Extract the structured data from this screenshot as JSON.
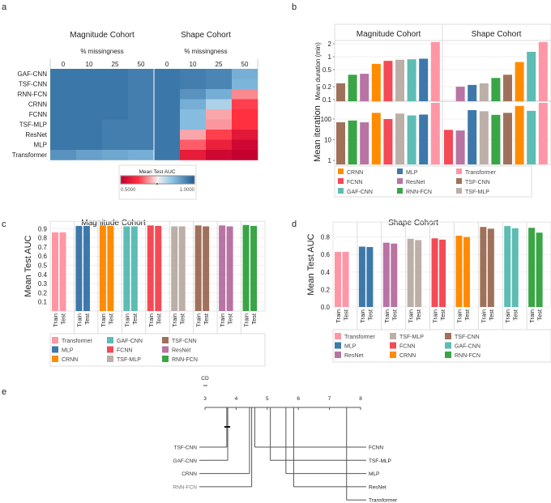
{
  "colors": {
    "Transformer": "#FF96A5",
    "MLP": "#3E78AA",
    "CRNN": "#FF8C00",
    "GAF-CNN": "#5DBCB4",
    "FCNN": "#F44A56",
    "TSF-MLP": "#BBAFA8",
    "TSF-CNN": "#A0715A",
    "ResNet": "#B874A3",
    "RNN-FCN": "#3AA546"
  },
  "chart_data": [
    {
      "panel": "a",
      "type": "heatmap",
      "cohorts": [
        "Magnitude Cohort",
        "Shape Cohort"
      ],
      "xlabel": "% missingness",
      "columns": [
        "0",
        "10",
        "25",
        "50"
      ],
      "rows": [
        "GAF-CNN",
        "TSF-CNN",
        "RNN-FCN",
        "CRNN",
        "FCNN",
        "TSF-MLP",
        "ResNet",
        "MLP",
        "Transformer"
      ],
      "values": {
        "Magnitude Cohort": [
          [
            0.96,
            0.96,
            0.96,
            0.95
          ],
          [
            0.96,
            0.96,
            0.96,
            0.95
          ],
          [
            0.96,
            0.96,
            0.96,
            0.95
          ],
          [
            0.96,
            0.96,
            0.96,
            0.95
          ],
          [
            0.96,
            0.96,
            0.96,
            0.95
          ],
          [
            0.96,
            0.96,
            0.95,
            0.95
          ],
          [
            0.96,
            0.96,
            0.95,
            0.95
          ],
          [
            0.96,
            0.96,
            0.95,
            0.95
          ],
          [
            0.92,
            0.9,
            0.89,
            0.88
          ]
        ],
        "Shape Cohort": [
          [
            0.96,
            0.95,
            0.94,
            0.88
          ],
          [
            0.96,
            0.95,
            0.94,
            0.87
          ],
          [
            0.96,
            0.92,
            0.88,
            0.68
          ],
          [
            0.96,
            0.88,
            0.82,
            0.63
          ],
          [
            0.96,
            0.86,
            0.7,
            0.62
          ],
          [
            0.96,
            0.86,
            0.69,
            0.62
          ],
          [
            0.96,
            0.7,
            0.63,
            0.56
          ],
          [
            0.96,
            0.65,
            0.58,
            0.52
          ],
          [
            0.96,
            0.57,
            0.52,
            0.5
          ]
        ]
      },
      "colorbar": {
        "title": "Mean Test AUC",
        "min_label": "0.5000",
        "max_label": "1.0000",
        "range": [
          0.5,
          1.0
        ],
        "low_color": "#C4002F",
        "mid_color": "#F5F0EE",
        "high_color": "#1F5B93"
      }
    },
    {
      "panel": "b",
      "type": "bar",
      "facets": [
        "Magnitude Cohort",
        "Shape Cohort"
      ],
      "scale": "log",
      "top": {
        "ylabel": "Mean duration (min)",
        "ticks": [
          "2",
          "1",
          "0.5",
          "0.2",
          "0.1"
        ],
        "Magnitude Cohort": {
          "categories": [
            "TSF-CNN",
            "RNN-FCN",
            "ResNet",
            "CRNN",
            "FCNN",
            "TSF-MLP",
            "GAF-CNN",
            "MLP",
            "Transformer"
          ],
          "values": [
            0.24,
            0.38,
            0.4,
            0.68,
            0.8,
            0.85,
            0.87,
            0.9,
            2.2
          ]
        },
        "Shape Cohort": {
          "categories": [
            "FCNN",
            "ResNet",
            "MLP",
            "TSF-MLP",
            "RNN-FCN",
            "TSF-CNN",
            "CRNN",
            "GAF-CNN",
            "Transformer"
          ],
          "values": [
            0.09,
            0.2,
            0.22,
            0.24,
            0.32,
            0.38,
            0.75,
            1.3,
            2.2
          ]
        }
      },
      "bottom": {
        "ylabel": "Mean iteration",
        "ticks": [
          "100",
          "10",
          "1"
        ],
        "Magnitude Cohort": {
          "categories": [
            "TSF-CNN",
            "RNN-FCN",
            "ResNet",
            "CRNN",
            "FCNN",
            "TSF-MLP",
            "GAF-CNN",
            "MLP",
            "Transformer"
          ],
          "values": [
            70,
            85,
            70,
            200,
            100,
            185,
            150,
            165,
            620
          ]
        },
        "Shape Cohort": {
          "categories": [
            "FCNN",
            "ResNet",
            "MLP",
            "TSF-MLP",
            "RNN-FCN",
            "TSF-CNN",
            "CRNN",
            "GAF-CNN",
            "Transformer"
          ],
          "values": [
            30,
            28,
            270,
            240,
            160,
            200,
            430,
            250,
            620
          ]
        }
      },
      "legend": [
        "CRNN",
        "MLP",
        "Transformer",
        "FCNN",
        "ResNet",
        "TSF-CNN",
        "GAF-CNN",
        "RNN-FCN",
        "TSF-MLP"
      ]
    },
    {
      "panel": "c",
      "type": "bar",
      "title": "Magnitude Cohort",
      "ylabel": "Mean Test AUC",
      "yticks": [
        "0.1",
        "0.2",
        "0.3",
        "0.4",
        "0.5",
        "0.6",
        "0.7",
        "0.8",
        "0.9"
      ],
      "ylim": [
        0,
        0.98
      ],
      "bar_labels": [
        "Train",
        "Test"
      ],
      "categories": [
        "Transformer",
        "MLP",
        "CRNN",
        "GAF-CNN",
        "FCNN",
        "TSF-MLP",
        "TSF-CNN",
        "ResNet",
        "RNN-FCN"
      ],
      "train": [
        0.86,
        0.93,
        0.935,
        0.925,
        0.935,
        0.925,
        0.935,
        0.935,
        0.94
      ],
      "test": [
        0.86,
        0.93,
        0.93,
        0.925,
        0.93,
        0.925,
        0.925,
        0.925,
        0.93
      ],
      "legend": [
        "Transformer",
        "GAF-CNN",
        "TSF-CNN",
        "MLP",
        "FCNN",
        "ResNet",
        "CRNN",
        "TSF-MLP",
        "RNN-FCN"
      ]
    },
    {
      "panel": "d",
      "type": "bar",
      "title": "Shape Cohort",
      "ylabel": "Mean Test AUC",
      "yticks": [
        "0.0",
        "0.2",
        "0.4",
        "0.6",
        "0.8"
      ],
      "ylim": [
        0,
        0.97
      ],
      "bar_labels": [
        "Train",
        "Test"
      ],
      "categories": [
        "Transformer",
        "MLP",
        "ResNet",
        "TSF-MLP",
        "FCNN",
        "CRNN",
        "TSF-CNN",
        "GAF-CNN",
        "RNN-FCN"
      ],
      "train": [
        0.63,
        0.69,
        0.735,
        0.78,
        0.785,
        0.815,
        0.915,
        0.925,
        0.905
      ],
      "test": [
        0.63,
        0.685,
        0.725,
        0.765,
        0.77,
        0.8,
        0.895,
        0.9,
        0.85
      ],
      "legend": [
        "Transformer",
        "TSF-MLP",
        "TSF-CNN",
        "MLP",
        "FCNN",
        "GAF-CNN",
        "ResNet",
        "CRNN",
        "RNN-FCN"
      ]
    },
    {
      "panel": "e",
      "type": "critical-difference",
      "cd_label": "CD",
      "axis_ticks": [
        "3",
        "4",
        "5",
        "6",
        "7",
        "8"
      ],
      "axis_range": [
        3,
        8
      ],
      "left": [
        {
          "name": "TSF-CNN",
          "rank": 3.7
        },
        {
          "name": "GAF-CNN",
          "rank": 3.73
        },
        {
          "name": "CRNN",
          "rank": 4.43
        },
        {
          "name": "RNN-FCN",
          "rank": 4.5
        }
      ],
      "right": [
        {
          "name": "FCNN",
          "rank": 4.6
        },
        {
          "name": "TSF-MLP",
          "rank": 5.1
        },
        {
          "name": "MLP",
          "rank": 5.6
        },
        {
          "name": "ResNet",
          "rank": 5.85
        },
        {
          "name": "Transformer",
          "rank": 7.55
        }
      ],
      "clique": [
        3.7,
        3.73
      ]
    }
  ],
  "panel_labels": [
    "a",
    "b",
    "c",
    "d",
    "e"
  ]
}
